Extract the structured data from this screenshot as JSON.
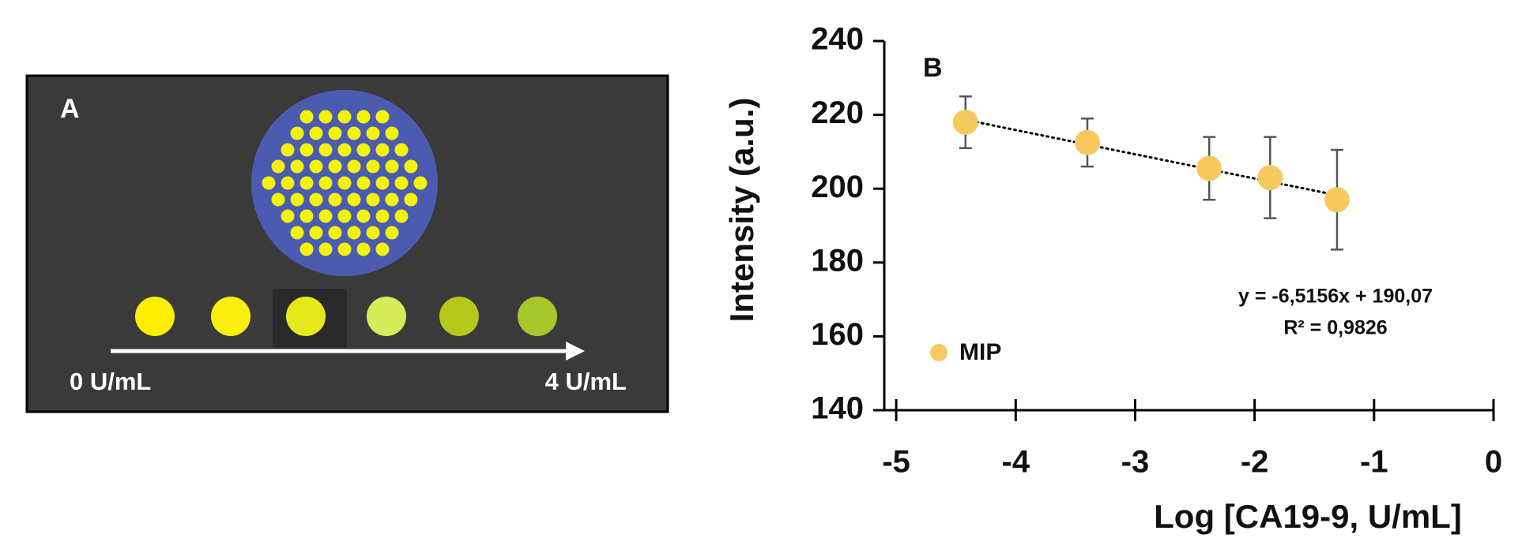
{
  "panel_a": {
    "label": "A",
    "start_label": "0 U/mL",
    "end_label": "4 U/mL"
  },
  "chart_data": {
    "type": "scatter",
    "panel_label": "B",
    "x_label": "Log [CA19-9, U/mL]",
    "y_label": "Intensity (a.u.)",
    "series": [
      {
        "name": "MIP",
        "color": "#f6c95f",
        "x": [
          -4.42,
          -3.4,
          -2.38,
          -1.87,
          -1.31
        ],
        "values": [
          218,
          212.5,
          205.5,
          203,
          197
        ],
        "errors": [
          7,
          6.5,
          8.5,
          11,
          13.5
        ]
      }
    ],
    "trendline": "linear",
    "annotations": [
      "y = -6,5156x + 190,07",
      "R² = 0,9826"
    ],
    "xlim": [
      -5.1,
      0
    ],
    "xticks": [
      -5,
      -4,
      -3,
      -2,
      -1,
      0
    ],
    "ylim": [
      140,
      240
    ],
    "yticks": [
      140,
      160,
      180,
      200,
      220,
      240
    ],
    "legend": "lower left"
  }
}
